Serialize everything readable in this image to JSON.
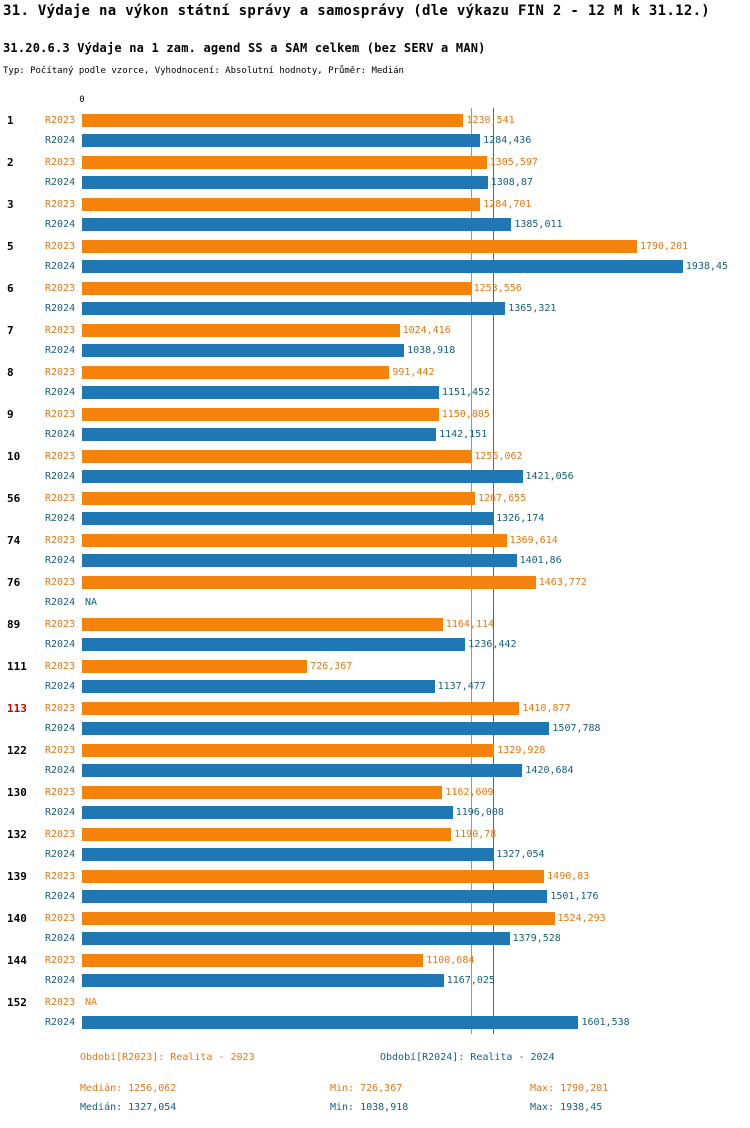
{
  "header": {
    "title": "31. Výdaje na výkon státní správy a samosprávy (dle výkazu FIN 2 - 12 M k 31.12.)",
    "subtitle": "31.20.6.3 Výdaje na 1 zam. agend SS a SAM celkem (bez SERV a MAN)",
    "meta": "Typ: Počítaný podle vzorce, Vyhodnocení: Absolutní hodnoty, Průměr: Medián"
  },
  "axis": {
    "zero_label": "0",
    "xmax": 2000
  },
  "colors": {
    "r2023": "#f5820b",
    "r2024": "#1f77b4",
    "r2023_text": "#e87511",
    "r2024_text": "#17607c",
    "highlight": "#cc0000"
  },
  "series_labels": {
    "r2023": "R2023",
    "r2024": "R2024"
  },
  "chart_data": {
    "type": "bar",
    "orientation": "horizontal",
    "title": "31.20.6.3 Výdaje na 1 zam. agend SS a SAM celkem (bez SERV a MAN)",
    "xlim": [
      0,
      2000
    ],
    "categories": [
      "1",
      "2",
      "3",
      "5",
      "6",
      "7",
      "8",
      "9",
      "10",
      "56",
      "74",
      "76",
      "89",
      "111",
      "113",
      "122",
      "130",
      "132",
      "139",
      "140",
      "144",
      "152"
    ],
    "highlight_category": "113",
    "series": [
      {
        "name": "R2023",
        "color": "#f5820b",
        "values": [
          1230.541,
          1305.597,
          1284.701,
          1790.201,
          1253.556,
          1024.416,
          991.442,
          1150.805,
          1256.062,
          1267.655,
          1369.614,
          1463.772,
          1164.114,
          726.367,
          1410.877,
          1329.928,
          1162.609,
          1190.78,
          1490.83,
          1524.293,
          1100.684,
          null
        ],
        "labels": [
          "1230,541",
          "1305,597",
          "1284,701",
          "1790,201",
          "1253,556",
          "1024,416",
          "991,442",
          "1150,805",
          "1256,062",
          "1267,655",
          "1369,614",
          "1463,772",
          "1164,114",
          "726,367",
          "1410,877",
          "1329,928",
          "1162,609",
          "1190,78",
          "1490,83",
          "1524,293",
          "1100,684",
          "NA"
        ]
      },
      {
        "name": "R2024",
        "color": "#1f77b4",
        "values": [
          1284.436,
          1308.87,
          1385.011,
          1938.45,
          1365.321,
          1038.918,
          1151.452,
          1142.151,
          1421.056,
          1326.174,
          1401.86,
          null,
          1236.442,
          1137.477,
          1507.788,
          1420.684,
          1196.008,
          1327.054,
          1501.176,
          1379.528,
          1167.025,
          1601.538
        ],
        "labels": [
          "1284,436",
          "1308,87",
          "1385,011",
          "1938,45",
          "1365,321",
          "1038,918",
          "1151,452",
          "1142,151",
          "1421,056",
          "1326,174",
          "1401,86",
          "NA",
          "1236,442",
          "1137,477",
          "1507,788",
          "1420,684",
          "1196,008",
          "1327,054",
          "1501,176",
          "1379,528",
          "1167,025",
          "1601,538"
        ]
      }
    ],
    "reference_lines": [
      {
        "name": "median-r2023",
        "value": 1256.062,
        "color": "#f5820b"
      },
      {
        "name": "median-r2024",
        "value": 1327.054,
        "color": "#1f77b4"
      }
    ]
  },
  "legend": [
    {
      "label": "Období[R2023]: Realita - 2023"
    },
    {
      "label": "Období[R2024]: Realita - 2024"
    }
  ],
  "stats": [
    {
      "median": "Medián: 1256,062",
      "min": "Min: 726,367",
      "max": "Max: 1790,201"
    },
    {
      "median": "Medián: 1327,054",
      "min": "Min: 1038,918",
      "max": "Max: 1938,45"
    }
  ]
}
